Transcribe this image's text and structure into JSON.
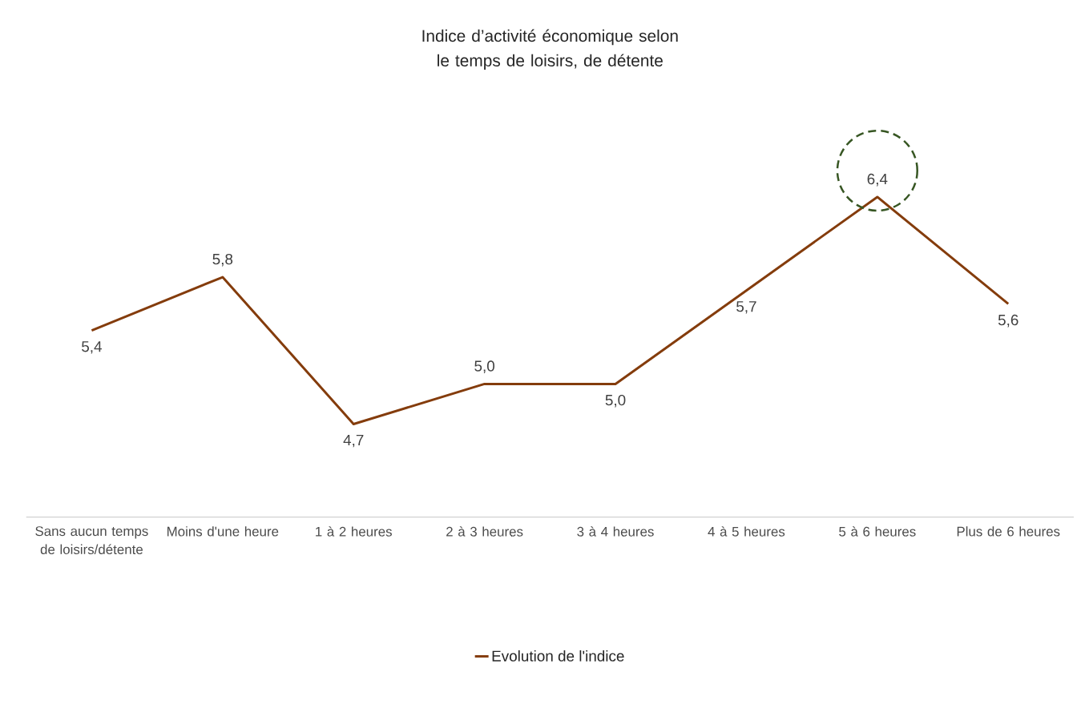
{
  "chart_data": {
    "type": "line",
    "title": "Indice d’activité économique selon le temps de loisirs, de détente",
    "categories": [
      "Sans aucun temps de loisirs/détente",
      "Moins d'une heure",
      "1 à 2 heures",
      "2 à 3 heures",
      "3 à 4 heures",
      "4 à 5 heures",
      "5 à 6 heures",
      "Plus de 6 heures"
    ],
    "series": [
      {
        "name": "Evolution de l'indice",
        "color": "#843c0c",
        "values": [
          5.4,
          5.8,
          4.7,
          5.0,
          5.0,
          5.7,
          6.4,
          5.6
        ],
        "value_labels": [
          "5,4",
          "5,8",
          "4,7",
          "5,0",
          "5,0",
          "5,7",
          "6,4",
          "5,6"
        ]
      }
    ],
    "legend": "bottom",
    "grid": false,
    "marker": "none",
    "line_style": "solid"
  }
}
